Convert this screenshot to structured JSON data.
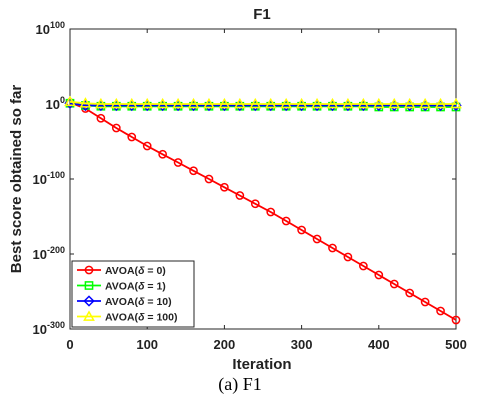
{
  "chart_data": {
    "type": "line",
    "title": "F1",
    "xlabel": "Iteration",
    "ylabel": "Best score obtained so far",
    "xlim": [
      0,
      500
    ],
    "ylim_exponent": [
      -300,
      100
    ],
    "yscale": "log",
    "grid": false,
    "legend_position": "bottom-left",
    "x_ticks": [
      "0",
      "100",
      "200",
      "300",
      "400",
      "500"
    ],
    "y_ticks": [
      {
        "base": "10",
        "exp": "100",
        "value_exp": 100
      },
      {
        "base": "10",
        "exp": "0",
        "value_exp": 0
      },
      {
        "base": "10",
        "exp": "-100",
        "value_exp": -100
      },
      {
        "base": "10",
        "exp": "-200",
        "value_exp": -200
      },
      {
        "base": "10",
        "exp": "-300",
        "value_exp": -300
      }
    ],
    "x": [
      0,
      20,
      40,
      60,
      80,
      100,
      120,
      140,
      160,
      180,
      200,
      220,
      240,
      260,
      280,
      300,
      320,
      340,
      360,
      380,
      400,
      420,
      440,
      460,
      480,
      500
    ],
    "series": [
      {
        "name_prefix": "AVOA(",
        "name_symbol": "δ",
        "name_suffix": " = 0)",
        "color": "#ff0000",
        "marker": "circle",
        "y_exp": [
          2,
          -6,
          -19,
          -32,
          -44,
          -56,
          -67,
          -78,
          -89,
          -100,
          -111,
          -122,
          -133,
          -144,
          -156,
          -168,
          -180,
          -192,
          -204,
          -216,
          -228,
          -240,
          -252,
          -264,
          -276,
          -288
        ]
      },
      {
        "name_prefix": "AVOA(",
        "name_symbol": "δ",
        "name_suffix": " = 1)",
        "color": "#00ff00",
        "marker": "square",
        "y_exp": [
          1,
          -2,
          -3,
          -3,
          -3,
          -3,
          -3,
          -3,
          -3,
          -3,
          -3,
          -3,
          -3,
          -3,
          -3,
          -3,
          -3,
          -3,
          -3,
          -3,
          -4,
          -4,
          -4,
          -4,
          -4,
          -4
        ]
      },
      {
        "name_prefix": "AVOA(",
        "name_symbol": "δ",
        "name_suffix": " = 10)",
        "color": "#0000ff",
        "marker": "diamond",
        "y_exp": [
          1,
          -2,
          -2,
          -2,
          -2,
          -2,
          -2,
          -2,
          -2,
          -2,
          -2,
          -2,
          -2,
          -2,
          -2,
          -2,
          -2,
          -2,
          -2,
          -2,
          -2,
          -2,
          -2,
          -2,
          -2,
          -2
        ]
      },
      {
        "name_prefix": "AVOA(",
        "name_symbol": "δ",
        "name_suffix": " = 100)",
        "color": "#ffff00",
        "marker": "triangle",
        "y_exp": [
          3,
          1,
          0,
          0,
          0,
          0,
          0,
          0,
          0,
          0,
          0,
          0,
          0,
          0,
          0,
          0,
          0,
          0,
          0,
          0,
          0,
          0,
          0,
          0,
          0,
          0
        ]
      }
    ]
  },
  "caption": "(a) F1"
}
